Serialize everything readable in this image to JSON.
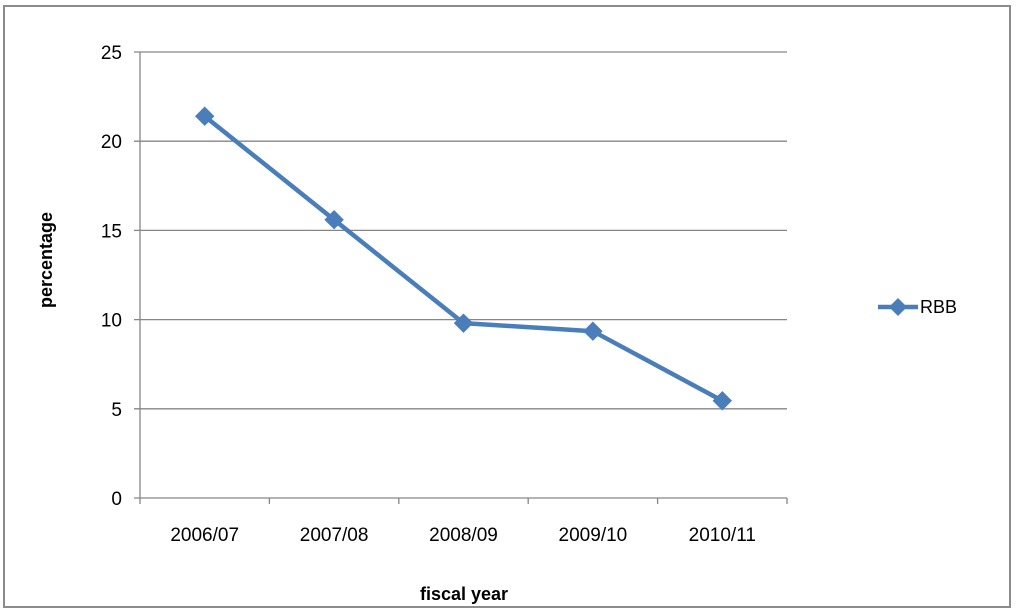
{
  "chart_data": {
    "type": "line",
    "categories": [
      "2006/07",
      "2007/08",
      "2008/09",
      "2009/10",
      "2010/11"
    ],
    "series": [
      {
        "name": "RBB",
        "values": [
          21.4,
          15.6,
          9.8,
          9.35,
          5.45
        ],
        "color": "#4a7ebb",
        "marker": "diamond"
      }
    ],
    "xlabel": "fiscal year",
    "ylabel": "percentage",
    "ylim": [
      0,
      25
    ],
    "yticks": [
      0,
      5,
      10,
      15,
      20,
      25
    ],
    "grid": "horizontal",
    "legend_position": "right",
    "colors": {
      "series": "#4a7ebb",
      "gridline": "#868686",
      "frame": "#8c8c8c"
    }
  }
}
